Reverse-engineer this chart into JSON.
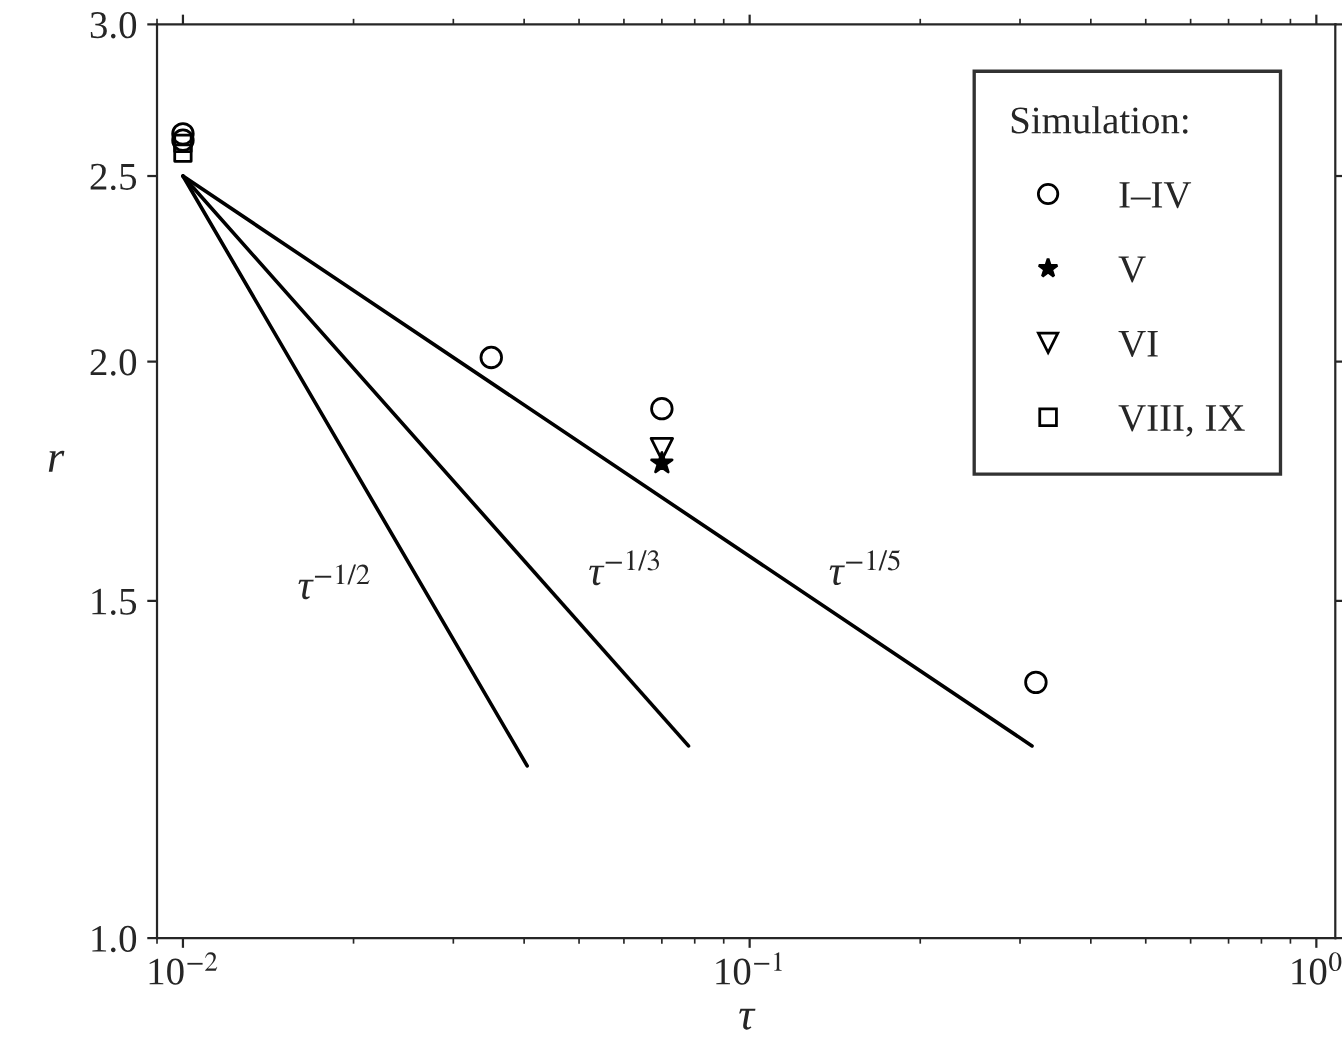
{
  "chart_data": {
    "type": "scatter",
    "xlabel": "τ",
    "ylabel": "r",
    "legend_title": "Simulation:",
    "legend": "top right",
    "log": "xy",
    "grid": false,
    "xlim": [
      0.009,
      1.08
    ],
    "ylim": [
      1,
      3
    ],
    "xticks": [
      {
        "value": 0.01,
        "label": "10$^{−2}$"
      },
      {
        "value": 0.1,
        "label": "10$^{−1}$"
      },
      {
        "value": 1,
        "label": "10$^{0}$"
      }
    ],
    "yticks": [
      {
        "value": 1,
        "label": "1.0"
      },
      {
        "value": 1.5,
        "label": "1.5"
      },
      {
        "value": 2,
        "label": "2.0"
      },
      {
        "value": 2.5,
        "label": "2.5"
      },
      {
        "value": 3,
        "label": "3.0"
      }
    ],
    "series": [
      {
        "type": "line",
        "color": "#000000",
        "marker": "none",
        "line_style": "solid",
        "x": [
          0.01,
          0.0405
        ],
        "values": [
          2.5,
          1.23
        ]
      },
      {
        "type": "line",
        "color": "#000000",
        "marker": "none",
        "line_style": "solid",
        "x": [
          0.01,
          0.078
        ],
        "values": [
          2.5,
          1.26
        ]
      },
      {
        "type": "line",
        "color": "#000000",
        "marker": "none",
        "line_style": "solid",
        "x": [
          0.01,
          0.315
        ],
        "values": [
          2.5,
          1.26
        ]
      },
      {
        "name": "I–IV",
        "color": "#000000",
        "marker": "circle",
        "x": [
          0.01,
          0.01,
          0.035,
          0.07,
          0.32
        ],
        "values": [
          2.63,
          2.61,
          2.01,
          1.89,
          1.36
        ]
      },
      {
        "name": "V",
        "color": "#000000",
        "marker": "star",
        "x": [
          0.07
        ],
        "values": [
          1.77
        ]
      },
      {
        "name": "VI",
        "color": "#000000",
        "marker": "triangle",
        "x": [
          0.07
        ],
        "values": [
          1.8
        ]
      },
      {
        "name": "VIII, IX",
        "color": "#000000",
        "marker": "square",
        "x": [
          0.01,
          0.01
        ],
        "values": [
          2.6,
          2.57
        ]
      }
    ],
    "annotations": [
      "τ$^{−1/2}$",
      "τ$^{−1/3}$",
      "τ$^{−1/5}$"
    ]
  }
}
